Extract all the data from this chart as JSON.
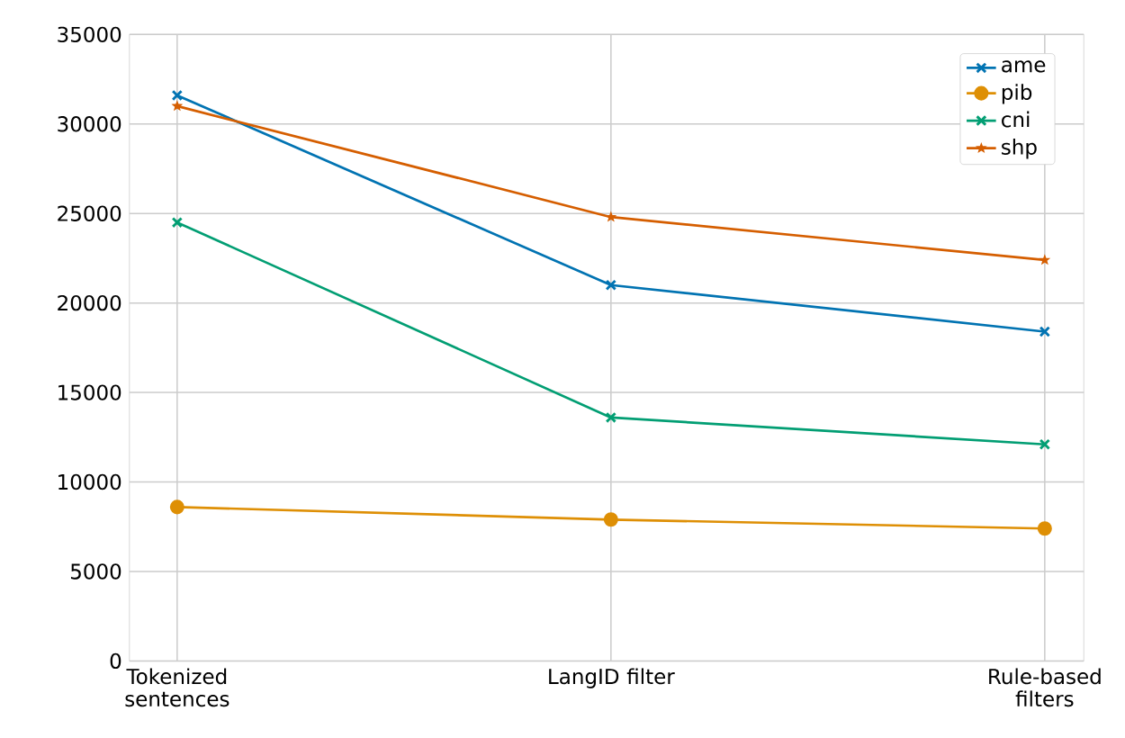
{
  "chart_data": {
    "type": "line",
    "categories": [
      "Tokenized sentences",
      "LangID filter",
      "Rule-based filters"
    ],
    "series": [
      {
        "name": "ame",
        "color": "#0173b2",
        "marker": "cross",
        "values": [
          31600,
          21000,
          18400
        ]
      },
      {
        "name": "pib",
        "color": "#de8f05",
        "marker": "circle",
        "values": [
          8600,
          7900,
          7400
        ]
      },
      {
        "name": "cni",
        "color": "#029e73",
        "marker": "cross",
        "values": [
          24500,
          13600,
          12100
        ]
      },
      {
        "name": "shp",
        "color": "#d55e00",
        "marker": "star",
        "values": [
          31000,
          24800,
          22400
        ]
      }
    ],
    "ylim": [
      0,
      35000
    ],
    "yticks": [
      0,
      5000,
      10000,
      15000,
      20000,
      25000,
      30000,
      35000
    ],
    "grid": true,
    "legend": "top right",
    "line_style": "solid"
  }
}
